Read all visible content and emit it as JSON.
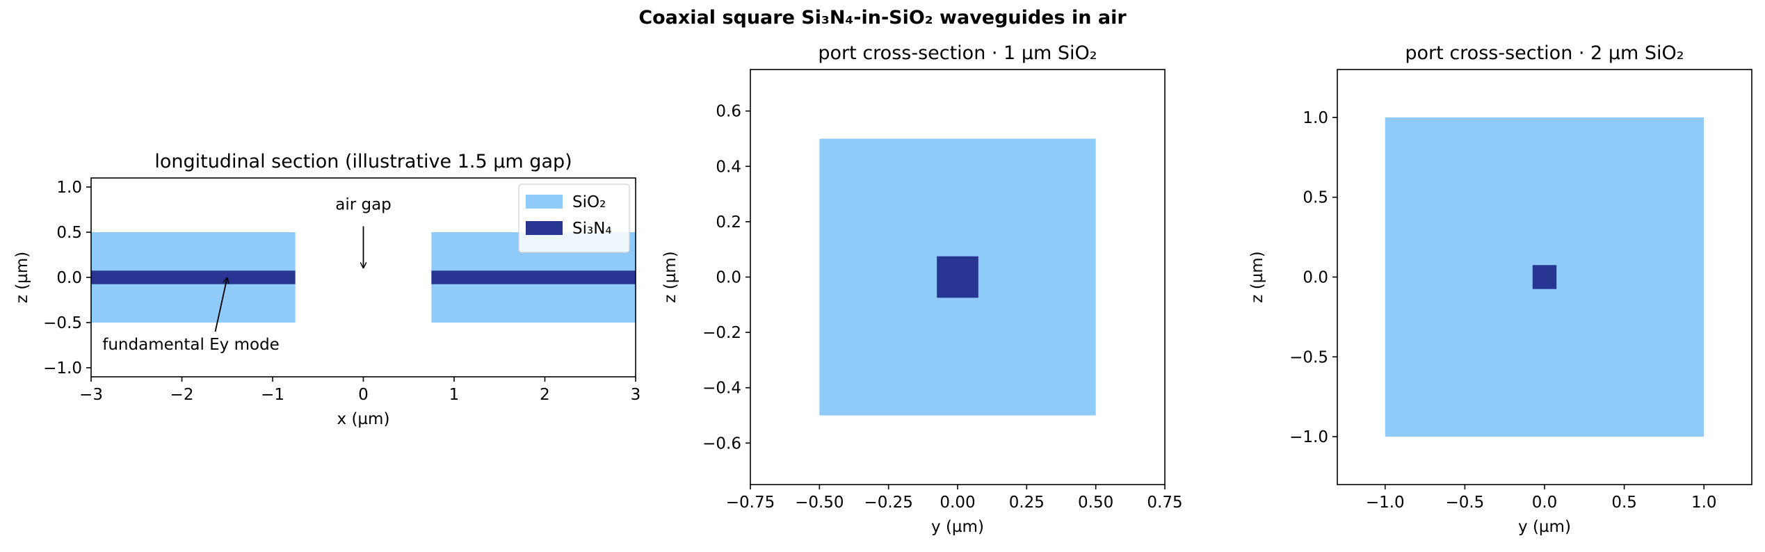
{
  "figure_title": "Coaxial square Si₃N₄-in-SiO₂ waveguides in air",
  "colors": {
    "SiO2": "#90CAF9",
    "Si3N4": "#283593",
    "axis": "#000000"
  },
  "chart_data": [
    {
      "type": "area",
      "title": "longitudinal section (illustrative 1.5 µm gap)",
      "xlabel": "x (µm)",
      "ylabel": "z (µm)",
      "xlim": [
        -3,
        3
      ],
      "ylim": [
        -1.1,
        1.1
      ],
      "xticks": [
        -3,
        -2,
        -1,
        0,
        1,
        2,
        3
      ],
      "xtick_labels": [
        "−3",
        "−2",
        "−1",
        "0",
        "1",
        "2",
        "3"
      ],
      "yticks": [
        1.0,
        0.5,
        0.0,
        -0.5,
        -1.0
      ],
      "ytick_labels": [
        "1.0",
        "0.5",
        "0.0",
        "−0.5",
        "−1.0"
      ],
      "regions": [
        {
          "material": "SiO2",
          "x": [
            -3,
            -0.75
          ],
          "z": [
            -0.5,
            0.5
          ]
        },
        {
          "material": "SiO2",
          "x": [
            0.75,
            3
          ],
          "z": [
            -0.5,
            0.5
          ]
        },
        {
          "material": "Si3N4",
          "x": [
            -3,
            -0.75
          ],
          "z": [
            -0.075,
            0.075
          ]
        },
        {
          "material": "Si3N4",
          "x": [
            0.75,
            3
          ],
          "z": [
            -0.075,
            0.075
          ]
        }
      ],
      "legend": {
        "position": "upper right",
        "entries": [
          {
            "label": "SiO₂",
            "material": "SiO2"
          },
          {
            "label": "Si₃N₄",
            "material": "Si3N4"
          }
        ]
      },
      "annotations": [
        {
          "text": "air gap",
          "text_xy": [
            0,
            0.75
          ],
          "arrow_to": [
            0,
            0.1
          ]
        },
        {
          "text": "fundamental Ey mode",
          "text_xy": [
            -1.9,
            -0.8
          ],
          "arrow_to": [
            -1.5,
            0
          ]
        }
      ]
    },
    {
      "type": "area",
      "title": "port cross-section · 1 µm SiO₂",
      "xlabel": "y (µm)",
      "ylabel": "z (µm)",
      "xlim": [
        -0.75,
        0.75
      ],
      "ylim": [
        -0.75,
        0.75
      ],
      "xticks": [
        -0.75,
        -0.5,
        -0.25,
        0,
        0.25,
        0.5,
        0.75
      ],
      "xtick_labels": [
        "−0.75",
        "−0.50",
        "−0.25",
        "0.00",
        "0.25",
        "0.50",
        "0.75"
      ],
      "yticks": [
        0.6,
        0.4,
        0.2,
        0.0,
        -0.2,
        -0.4,
        -0.6
      ],
      "ytick_labels": [
        "0.6",
        "0.4",
        "0.2",
        "0.0",
        "−0.2",
        "−0.4",
        "−0.6"
      ],
      "regions": [
        {
          "material": "SiO2",
          "x": [
            -0.5,
            0.5
          ],
          "z": [
            -0.5,
            0.5
          ]
        },
        {
          "material": "Si3N4",
          "x": [
            -0.075,
            0.075
          ],
          "z": [
            -0.075,
            0.075
          ]
        }
      ]
    },
    {
      "type": "area",
      "title": "port cross-section · 2 µm SiO₂",
      "xlabel": "y (µm)",
      "ylabel": "z (µm)",
      "xlim": [
        -1.3,
        1.3
      ],
      "ylim": [
        -1.3,
        1.3
      ],
      "xticks": [
        -1,
        -0.5,
        0,
        0.5,
        1
      ],
      "xtick_labels": [
        "−1.0",
        "−0.5",
        "0.0",
        "0.5",
        "1.0"
      ],
      "yticks": [
        1.0,
        0.5,
        0.0,
        -0.5,
        -1.0
      ],
      "ytick_labels": [
        "1.0",
        "0.5",
        "0.0",
        "−0.5",
        "−1.0"
      ],
      "regions": [
        {
          "material": "SiO2",
          "x": [
            -1,
            1
          ],
          "z": [
            -1,
            1
          ]
        },
        {
          "material": "Si3N4",
          "x": [
            -0.075,
            0.075
          ],
          "z": [
            -0.075,
            0.075
          ]
        }
      ]
    }
  ]
}
